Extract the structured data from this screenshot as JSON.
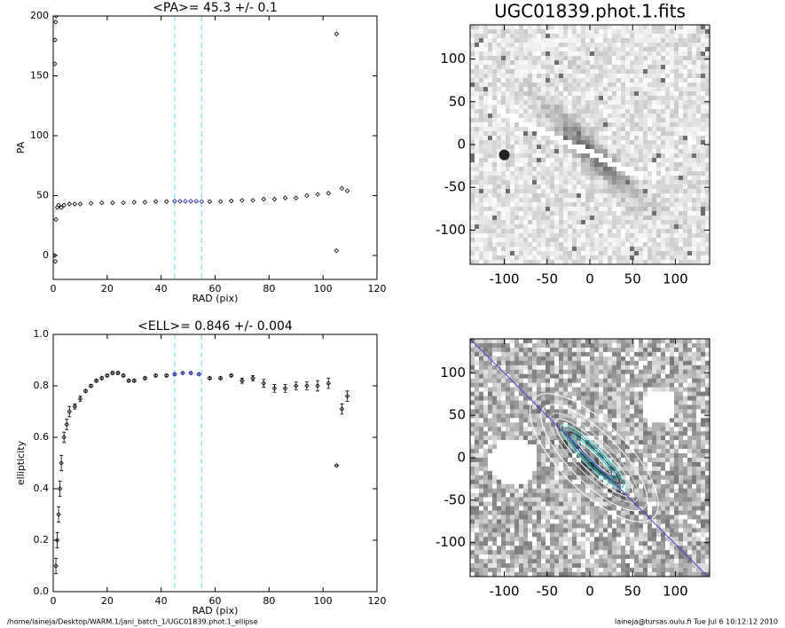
{
  "chart_data": [
    {
      "type": "scatter",
      "title": "<PA>=  45.3 +/-   0.1",
      "x_label": "RAD (pix)",
      "y_label": "PA",
      "xlim": [
        0,
        120
      ],
      "xticks": [
        0,
        20,
        40,
        60,
        80,
        100,
        120
      ],
      "ylim": [
        -20,
        200
      ],
      "yticks": [
        0,
        50,
        100,
        150,
        200
      ],
      "vlines": [
        45,
        55
      ],
      "vline_color": "#7fe0e8",
      "series": [
        {
          "color": "#000000",
          "x": [
            0.5,
            0.6,
            0.7,
            0.8,
            0.9,
            1,
            1.1,
            1.5,
            2,
            3,
            4,
            6,
            8,
            10,
            14,
            18,
            22,
            26,
            30,
            34,
            38,
            42,
            58,
            62,
            66,
            70,
            74,
            78,
            82,
            86,
            90,
            94,
            98,
            102,
            105,
            105,
            107,
            109
          ],
          "values": [
            0,
            160,
            180,
            -5,
            195,
            30,
            200,
            40,
            42,
            40,
            42,
            43,
            43,
            43,
            43.5,
            44,
            44,
            44,
            44.5,
            44.5,
            45,
            45,
            45,
            45,
            45.5,
            46,
            46,
            47,
            47,
            48,
            48,
            50,
            51,
            52,
            185,
            4,
            56,
            54
          ]
        },
        {
          "color": "#1a1aa8",
          "x": [
            45,
            47,
            49,
            51,
            53,
            55
          ],
          "values": [
            45.3,
            45.3,
            45.3,
            45.3,
            45.3,
            45
          ]
        }
      ]
    },
    {
      "type": "scatter",
      "title": "<ELL>= 0.846 +/-  0.004",
      "x_label": "RAD (pix)",
      "y_label": "ellipticity",
      "xlim": [
        0,
        120
      ],
      "xticks": [
        0,
        20,
        40,
        60,
        80,
        100,
        120
      ],
      "ylim": [
        0,
        1
      ],
      "yticks": [
        {
          "value": 0,
          "label": "0.0"
        },
        0.2,
        0.4,
        0.6,
        0.8,
        {
          "value": 1,
          "label": "1.0"
        }
      ],
      "vlines": [
        45,
        55
      ],
      "vline_color": "#7fe0e8",
      "series": [
        {
          "color": "#000000",
          "x": [
            1,
            1.5,
            2,
            2.5,
            3,
            4,
            5,
            6,
            8,
            10,
            12,
            14,
            16,
            18,
            20,
            22,
            24,
            26,
            28,
            30,
            34,
            38,
            42,
            58,
            62,
            66,
            70,
            74,
            78,
            82,
            86,
            90,
            94,
            98,
            102,
            105,
            107,
            109
          ],
          "values": [
            0.1,
            0.2,
            0.3,
            0.4,
            0.5,
            0.6,
            0.65,
            0.7,
            0.72,
            0.75,
            0.78,
            0.8,
            0.82,
            0.83,
            0.84,
            0.85,
            0.85,
            0.84,
            0.82,
            0.82,
            0.83,
            0.84,
            0.84,
            0.83,
            0.83,
            0.84,
            0.82,
            0.83,
            0.81,
            0.79,
            0.79,
            0.8,
            0.8,
            0.8,
            0.81,
            0.49,
            0.71,
            0.76
          ],
          "errors": [
            0.03,
            0.03,
            0.03,
            0.03,
            0.03,
            0.02,
            0.02,
            0.02,
            0.01,
            0.01,
            0.005,
            0.005,
            0.005,
            0.005,
            0.005,
            0.005,
            0.005,
            0.005,
            0.005,
            0.005,
            0.005,
            0.005,
            0.005,
            0.005,
            0.005,
            0.005,
            0.01,
            0.01,
            0.015,
            0.015,
            0.015,
            0.015,
            0.015,
            0.02,
            0.02,
            0.0,
            0.02,
            0.02
          ]
        },
        {
          "color": "#1a1aa8",
          "x": [
            45,
            48,
            51,
            54
          ],
          "values": [
            0.845,
            0.85,
            0.85,
            0.845
          ],
          "errors": [
            0.004,
            0.004,
            0.004,
            0.004
          ]
        }
      ]
    },
    {
      "type": "image",
      "title": "UGC01839.phot.1.fits",
      "variant": "raw",
      "xlim": [
        -140,
        140
      ],
      "xticks": [
        -100,
        -50,
        0,
        50,
        100
      ],
      "ylim": [
        -140,
        140
      ],
      "yticks": [
        -100,
        -50,
        0,
        50,
        100
      ]
    },
    {
      "type": "image",
      "variant": "model",
      "xlim": [
        -140,
        140
      ],
      "xticks": [
        -100,
        -50,
        0,
        50,
        100
      ],
      "ylim": [
        -140,
        140
      ],
      "yticks": [
        -100,
        -50,
        0,
        50,
        100
      ]
    }
  ],
  "footer_left": "/home/laineja/Desktop/WARM.1/jani_batch_1/UGC01839.phot.1_ellipse",
  "footer_right": "laineja@tursas.oulu.fi  Tue Jul  6 10:12:12 2010"
}
